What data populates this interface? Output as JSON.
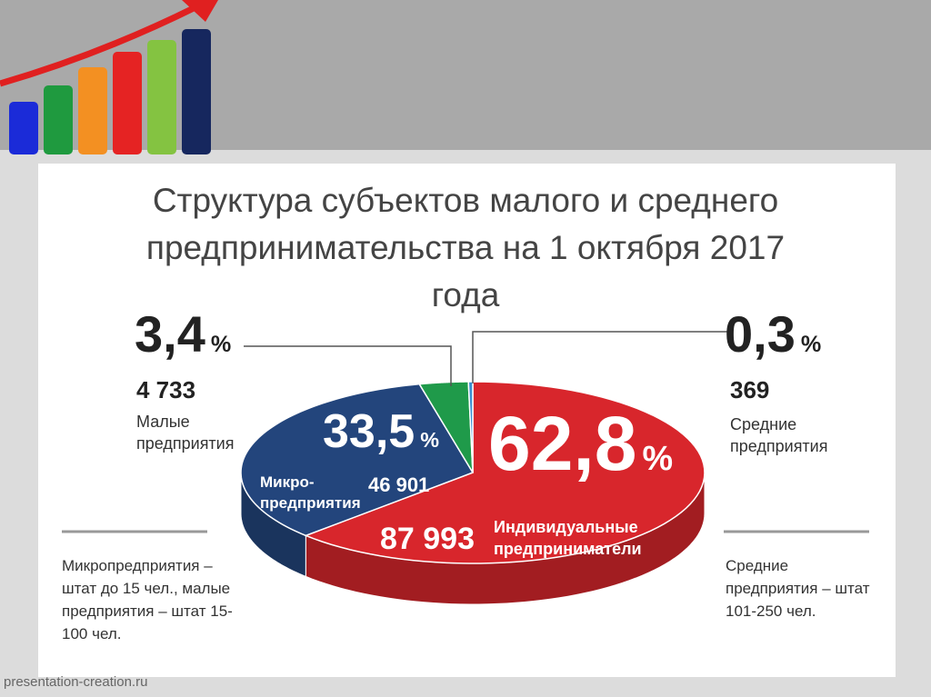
{
  "chart_data": {
    "type": "pie",
    "title": "Структура субъектов малого и среднего предпринимательства на 1 октября 2017 года",
    "categories": [
      "Индивидуальные предприниматели",
      "Микро-предприятия",
      "Малые предприятия",
      "Средние предприятия"
    ],
    "values": [
      62.8,
      33.5,
      3.4,
      0.3
    ],
    "value_labels": [
      "62,8",
      "33,5",
      "3,4",
      "0,3"
    ],
    "unit": "%",
    "counts": [
      87993,
      46901,
      4733,
      369
    ],
    "count_labels": [
      "87 993",
      "46 901",
      "4 733",
      "369"
    ],
    "colors": [
      "#d8262c",
      "#23457c",
      "#1f9a4a",
      "#3b8fd1"
    ]
  },
  "notes": [
    "Микропредприятия – штат до 15 чел., малые предприятия – штат 15-100 чел.",
    "Средние предприятия – штат 101-250 чел."
  ],
  "footer": "presentation-creation.ru"
}
